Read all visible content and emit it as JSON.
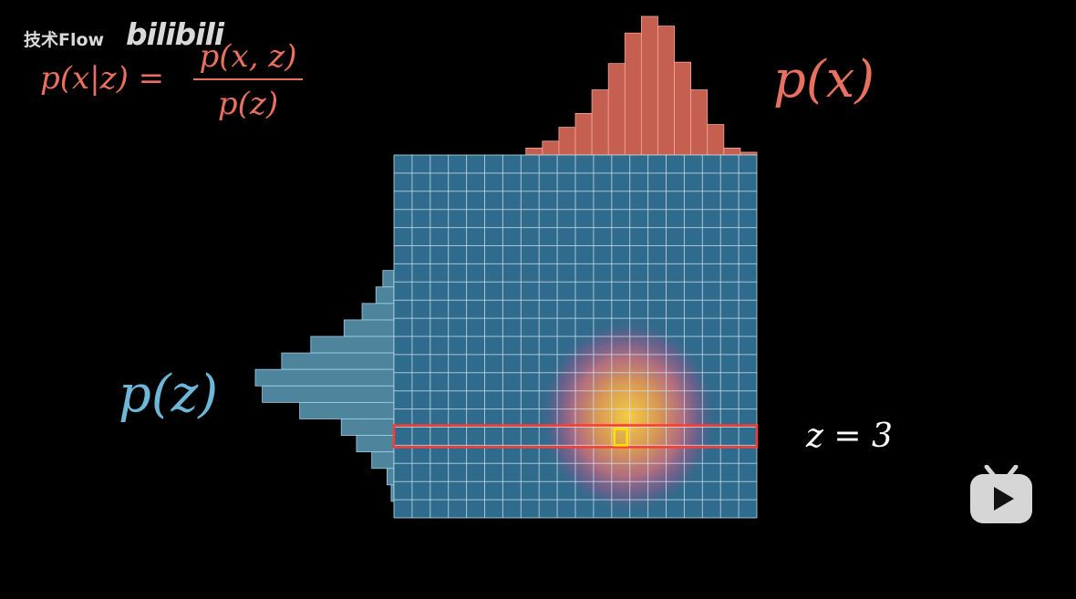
{
  "watermark": {
    "channel": "技术Flow",
    "logo": "bilibili"
  },
  "formula": {
    "lhs": "p(x|z) =",
    "numerator": "p(x, z)",
    "denominator": "p(z)"
  },
  "labels": {
    "px": "p(x)",
    "pz": "p(z)",
    "z_eq": "z = 3"
  },
  "colors": {
    "background": "#000000",
    "grid_fill": "#2f6b8c",
    "grid_line": "#cfe3ee",
    "px_color": "#e8705e",
    "pz_color": "#6db7d9",
    "highlight_row": "#ff3b30",
    "highlight_cell": "#ffe600"
  },
  "grid": {
    "cols": 20,
    "rows": 20
  },
  "marginal_x": [
    0,
    0,
    0,
    0,
    0,
    0,
    0,
    0,
    0.05,
    0.1,
    0.2,
    0.3,
    0.47,
    0.66,
    0.88,
    1.0,
    0.93,
    0.67,
    0.47,
    0.22,
    0.05,
    0.02
  ],
  "marginal_z": [
    0,
    0,
    0,
    0,
    0,
    0,
    0,
    0.08,
    0.13,
    0.23,
    0.36,
    0.6,
    0.81,
    1.0,
    0.95,
    0.68,
    0.38,
    0.27,
    0.16,
    0.05,
    0.02,
    0
  ],
  "selected": {
    "row": 15,
    "col": 12
  },
  "player": {
    "icon": "play-icon"
  }
}
